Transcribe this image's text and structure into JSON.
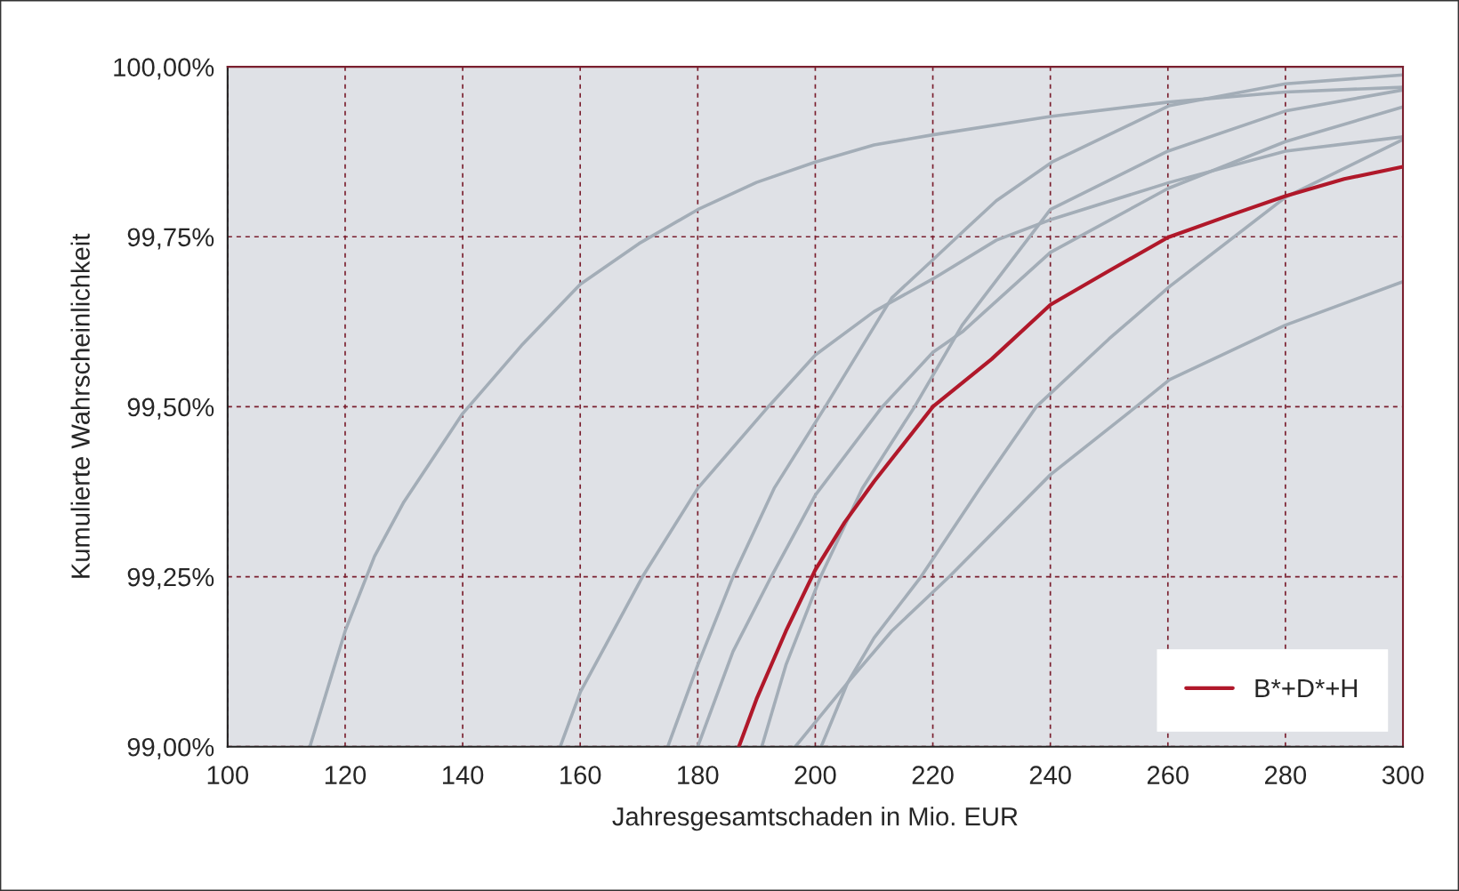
{
  "chart_data": {
    "type": "line",
    "xlabel": "Jahresgesamtschaden in Mio. EUR",
    "ylabel": "Kumulierte Wahrscheinlichkeit",
    "xlim": [
      100,
      300
    ],
    "xticks": [
      100,
      120,
      140,
      160,
      180,
      200,
      220,
      240,
      260,
      280,
      300
    ],
    "ylim": [
      99.0,
      100.0
    ],
    "yticks": [
      {
        "value": 99.0,
        "label": "99,00%"
      },
      {
        "value": 99.25,
        "label": "99,25%"
      },
      {
        "value": 99.5,
        "label": "99,50%"
      },
      {
        "value": 99.75,
        "label": "99,75%"
      },
      {
        "value": 100.0,
        "label": "100,00%"
      }
    ],
    "grid": true,
    "legend": "bottom right",
    "line_style": "solid",
    "marker": "none",
    "series": [
      {
        "color": "#a3adb7",
        "x": [
          114,
          120,
          125,
          130,
          140,
          150,
          160,
          170,
          180,
          190,
          200,
          210,
          220,
          240,
          260,
          280,
          300
        ],
        "values": [
          99.0,
          99.17,
          99.28,
          99.36,
          99.49,
          99.59,
          99.68,
          99.74,
          99.79,
          99.83,
          99.86,
          99.885,
          99.9,
          99.927,
          99.948,
          99.963,
          99.97
        ]
      },
      {
        "color": "#a3adb7",
        "x": [
          156.6,
          160,
          165,
          170.6,
          180,
          192,
          200,
          210,
          220,
          230.8,
          240.3,
          260.3,
          280,
          300
        ],
        "values": [
          99.0,
          99.08,
          99.16,
          99.25,
          99.38,
          99.5,
          99.576,
          99.64,
          99.688,
          99.745,
          99.776,
          99.83,
          99.876,
          99.897
        ]
      },
      {
        "color": "#a3adb7",
        "x": [
          174.9,
          180,
          186,
          193,
          201.7,
          213,
          220,
          224.8,
          230.8,
          240.3,
          260.3,
          280,
          300
        ],
        "values": [
          99.0,
          99.12,
          99.25,
          99.38,
          99.5,
          99.66,
          99.716,
          99.755,
          99.803,
          99.86,
          99.943,
          99.975,
          99.988
        ]
      },
      {
        "color": "#a3adb7",
        "x": [
          180,
          186,
          192.5,
          200,
          211.4,
          220,
          225,
          240,
          260,
          280,
          300
        ],
        "values": [
          99.0,
          99.14,
          99.25,
          99.37,
          99.5,
          99.58,
          99.61,
          99.727,
          99.821,
          99.89,
          99.941
        ]
      },
      {
        "color": "#a3adb7",
        "x": [
          190.9,
          195,
          200.9,
          208,
          216.9,
          225,
          240,
          260,
          280,
          300
        ],
        "values": [
          99.0,
          99.12,
          99.25,
          99.38,
          99.5,
          99.62,
          99.79,
          99.876,
          99.935,
          99.966
        ]
      },
      {
        "color": "#a3adb7",
        "x": [
          196.6,
          205.5,
          213,
          222.8,
          240,
          254.6,
          260.3,
          280,
          300
        ],
        "values": [
          99.0,
          99.094,
          99.17,
          99.25,
          99.4,
          99.5,
          99.54,
          99.62,
          99.684
        ]
      },
      {
        "color": "#a3adb7",
        "x": [
          201,
          205.5,
          210,
          218,
          228,
          237.6,
          250,
          260.3,
          280,
          300
        ],
        "values": [
          99.0,
          99.094,
          99.16,
          99.25,
          99.38,
          99.5,
          99.6,
          99.677,
          99.808,
          99.893
        ]
      },
      {
        "name": "B*+D*+H",
        "color": "#b0182a",
        "x": [
          187,
          190,
          195,
          200,
          205,
          210,
          220,
          230,
          240,
          250,
          260,
          270,
          280,
          290,
          300
        ],
        "values": [
          99.0,
          99.07,
          99.17,
          99.26,
          99.33,
          99.39,
          99.5,
          99.57,
          99.65,
          99.7,
          99.749,
          99.78,
          99.81,
          99.835,
          99.853
        ]
      }
    ]
  }
}
